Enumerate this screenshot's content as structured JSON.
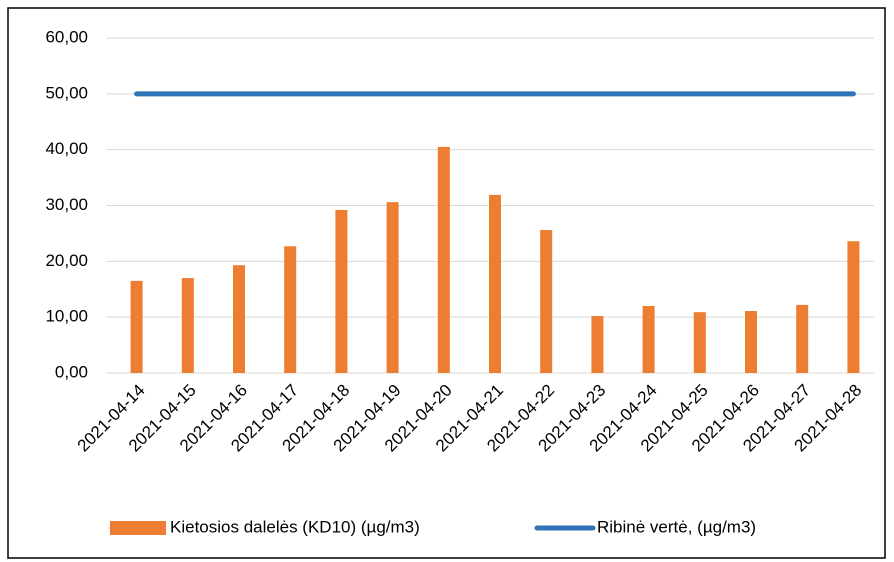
{
  "chart_data": {
    "type": "bar",
    "categories": [
      "2021-04-14",
      "2021-04-15",
      "2021-04-16",
      "2021-04-17",
      "2021-04-18",
      "2021-04-19",
      "2021-04-20",
      "2021-04-21",
      "2021-04-22",
      "2021-04-23",
      "2021-04-24",
      "2021-04-25",
      "2021-04-26",
      "2021-04-27",
      "2021-04-28"
    ],
    "series": [
      {
        "name": "Kietosios dalelės (KD10) (µg/m3)",
        "type": "bar",
        "color": "#ed7d31",
        "values": [
          16.5,
          17.0,
          19.3,
          22.7,
          29.2,
          30.6,
          40.5,
          31.9,
          25.6,
          10.2,
          12.0,
          10.9,
          11.1,
          12.2,
          23.6
        ]
      },
      {
        "name": "Ribinė vertė, (µg/m3)",
        "type": "line",
        "color": "#2e75b6",
        "values": [
          50,
          50,
          50,
          50,
          50,
          50,
          50,
          50,
          50,
          50,
          50,
          50,
          50,
          50,
          50
        ]
      }
    ],
    "ylim": [
      0,
      60
    ],
    "yticks": [
      {
        "value": 0,
        "label": "0,00"
      },
      {
        "value": 10,
        "label": "10,00"
      },
      {
        "value": 20,
        "label": "20,00"
      },
      {
        "value": 30,
        "label": "30,00"
      },
      {
        "value": 40,
        "label": "40,00"
      },
      {
        "value": 50,
        "label": "50,00"
      },
      {
        "value": 60,
        "label": "60,00"
      }
    ],
    "grid": true,
    "legend": "bottom"
  }
}
